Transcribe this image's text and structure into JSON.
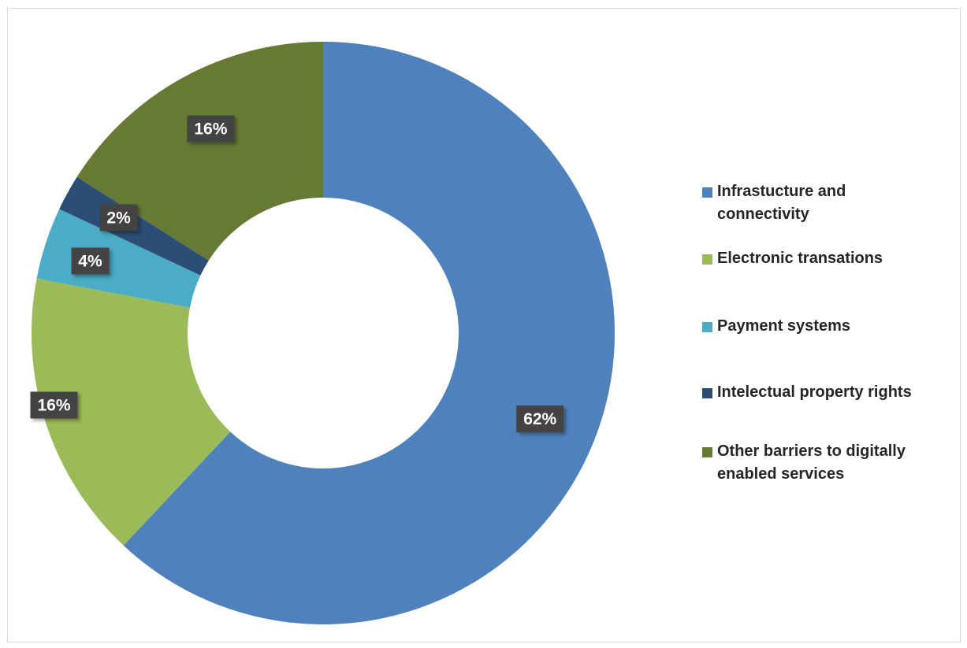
{
  "chart_data": {
    "type": "pie",
    "donut": true,
    "categories": [
      "Infrastucture and connectivity",
      "Electronic transations",
      "Payment systems",
      "Intelectual property rights",
      "Other barriers to digitally enabled services"
    ],
    "values": [
      62,
      16,
      4,
      2,
      16
    ],
    "value_labels": [
      "62%",
      "16%",
      "4%",
      "2%",
      "16%"
    ],
    "colors": [
      "#4f81bd",
      "#9bbb59",
      "#4bacc6",
      "#2c4d75",
      "#667a34"
    ],
    "legend_position": "right",
    "title": ""
  },
  "legend": {
    "items": [
      {
        "label_line1": "Infrastucture and",
        "label_line2": "connectivity",
        "color": "#4f81bd"
      },
      {
        "label_line1": "Electronic transations",
        "label_line2": "",
        "color": "#9bbb59"
      },
      {
        "label_line1": "Payment systems",
        "label_line2": "",
        "color": "#4bacc6"
      },
      {
        "label_line1": "Intelectual property rights",
        "label_line2": "",
        "color": "#2c4d75"
      },
      {
        "label_line1": "Other barriers to digitally",
        "label_line2": "enabled services",
        "color": "#667a34"
      }
    ]
  }
}
